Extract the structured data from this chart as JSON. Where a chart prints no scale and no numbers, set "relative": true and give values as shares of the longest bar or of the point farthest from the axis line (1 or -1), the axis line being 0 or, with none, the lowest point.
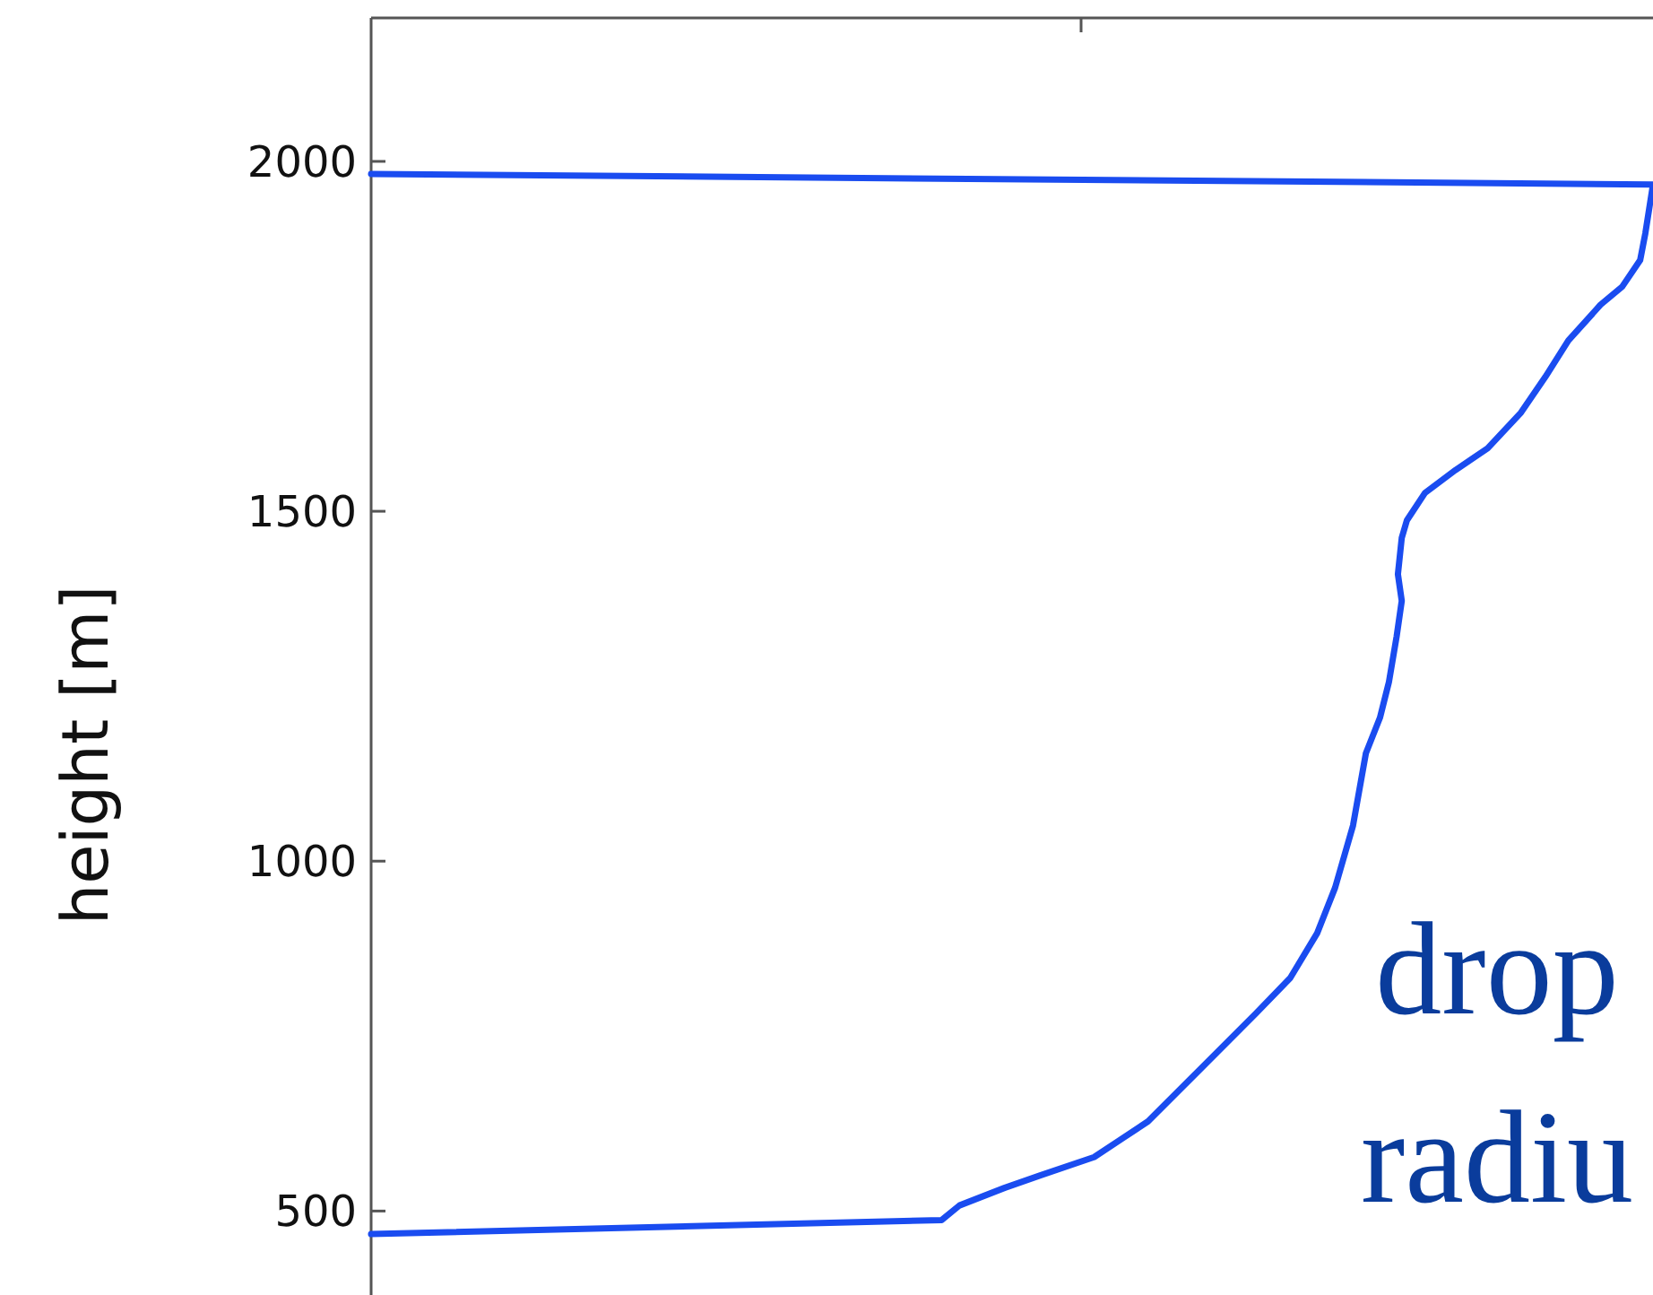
{
  "chart_data": {
    "type": "line",
    "orientation": "horizontal",
    "relative": true,
    "ylabel": "height [m]",
    "ylim": [
      380,
      2205
    ],
    "yticks": [
      500,
      1000,
      1500,
      2000
    ],
    "grid": false,
    "marker": "none",
    "line_style": "solid",
    "annotations": [
      "drop",
      "radiu"
    ],
    "series": [
      {
        "color": "#1a4cf0",
        "x": [
          1982,
          1967,
          1897,
          1859,
          1821,
          1795,
          1744,
          1692,
          1641,
          1590,
          1559,
          1526,
          1487,
          1462,
          1410,
          1372,
          1321,
          1256,
          1205,
          1154,
          1051,
          962,
          897,
          833,
          782,
          705,
          628,
          577,
          551,
          533,
          508,
          487,
          467
        ],
        "values": [
          0,
          1,
          0.994,
          0.99,
          0.976,
          0.959,
          0.934,
          0.916,
          0.897,
          0.871,
          0.846,
          0.822,
          0.808,
          0.804,
          0.801,
          0.804,
          0.8,
          0.794,
          0.787,
          0.776,
          0.766,
          0.752,
          0.738,
          0.717,
          0.69,
          0.648,
          0.606,
          0.564,
          0.522,
          0.494,
          0.459,
          0.445,
          0
        ]
      }
    ]
  }
}
